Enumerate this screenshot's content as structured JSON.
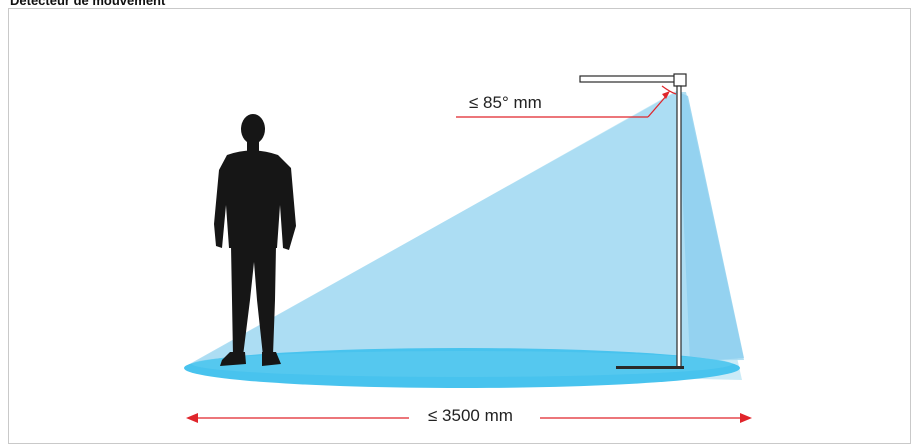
{
  "heading": "Détecteur de mouvement",
  "angle_label": "≤ 85° mm",
  "distance_label": "≤ 3500 mm",
  "colors": {
    "arrow": "#e0252b",
    "cone_light": "#a9dcf2",
    "cone_mid": "#8fd0ee",
    "floor_ellipse": "#48c3ee",
    "silhouette": "#161616",
    "lamp": "#2a2a2a",
    "frame_border": "#c9c9c9"
  }
}
